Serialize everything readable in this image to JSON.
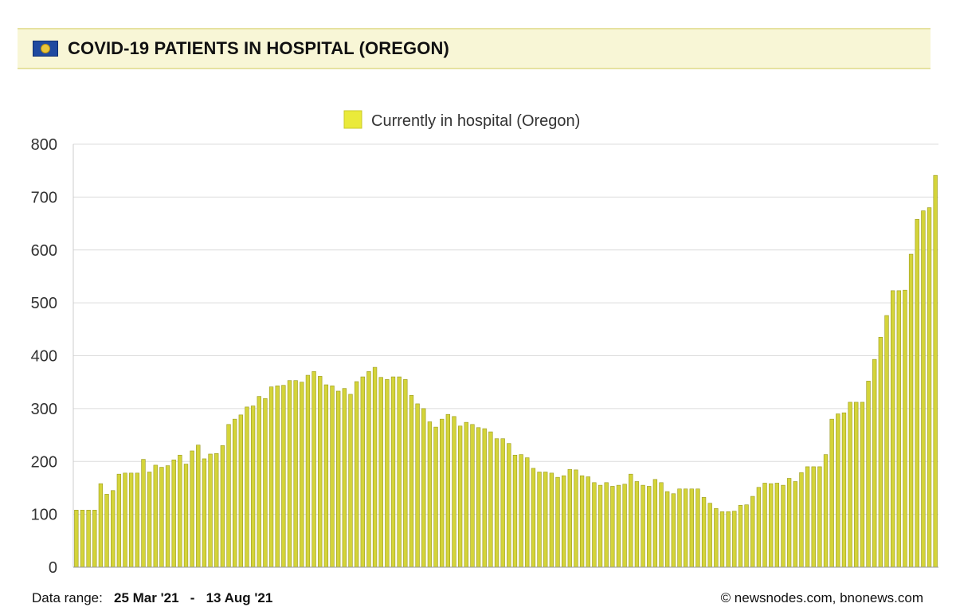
{
  "header": {
    "title": "COVID-19 PATIENTS IN HOSPITAL (OREGON)",
    "flag_icon": "oregon-flag-icon"
  },
  "footer": {
    "range_label": "Data range:",
    "range_start": "25 Mar '21",
    "range_sep": "-",
    "range_end": "13 Aug '21",
    "credit": "© newsnodes.com, bnonews.com"
  },
  "colors": {
    "bar_fill": "#d4d43a",
    "bar_stroke": "#9a9a1c",
    "legend_fill": "#eaea3a",
    "grid": "#dcdcdc",
    "header_bg": "#f8f6d6"
  },
  "chart_data": {
    "type": "bar",
    "legend": "Currently in hospital (Oregon)",
    "legend_position": "top-center",
    "ylim": [
      0,
      800
    ],
    "yticks": [
      "0",
      "100",
      "200",
      "300",
      "400",
      "500",
      "600",
      "700",
      "800"
    ],
    "grid": true,
    "x_start": "25 Mar '21",
    "x_end": "13 Aug '21",
    "series": [
      {
        "name": "Currently in hospital (Oregon)",
        "values": [
          108,
          108,
          108,
          108,
          158,
          138,
          145,
          176,
          178,
          178,
          178,
          204,
          180,
          193,
          189,
          192,
          203,
          212,
          195,
          220,
          231,
          205,
          214,
          215,
          230,
          270,
          280,
          288,
          303,
          305,
          323,
          319,
          341,
          343,
          344,
          353,
          353,
          350,
          363,
          370,
          361,
          345,
          343,
          333,
          338,
          327,
          351,
          360,
          370,
          378,
          359,
          355,
          360,
          360,
          355,
          325,
          309,
          300,
          275,
          265,
          280,
          289,
          285,
          267,
          274,
          270,
          264,
          262,
          256,
          243,
          243,
          234,
          212,
          213,
          207,
          187,
          180,
          180,
          178,
          170,
          173,
          185,
          184,
          173,
          171,
          160,
          155,
          160,
          153,
          155,
          157,
          176,
          162,
          155,
          153,
          166,
          160,
          143,
          139,
          148,
          148,
          148,
          148,
          132,
          121,
          111,
          105,
          105,
          106,
          117,
          118,
          134,
          151,
          159,
          158,
          159,
          155,
          168,
          162,
          179,
          190,
          190,
          190,
          213,
          280,
          290,
          292,
          312,
          312,
          312,
          352,
          393,
          435,
          476,
          523,
          523,
          524,
          592,
          658,
          674,
          680,
          741
        ]
      }
    ]
  }
}
